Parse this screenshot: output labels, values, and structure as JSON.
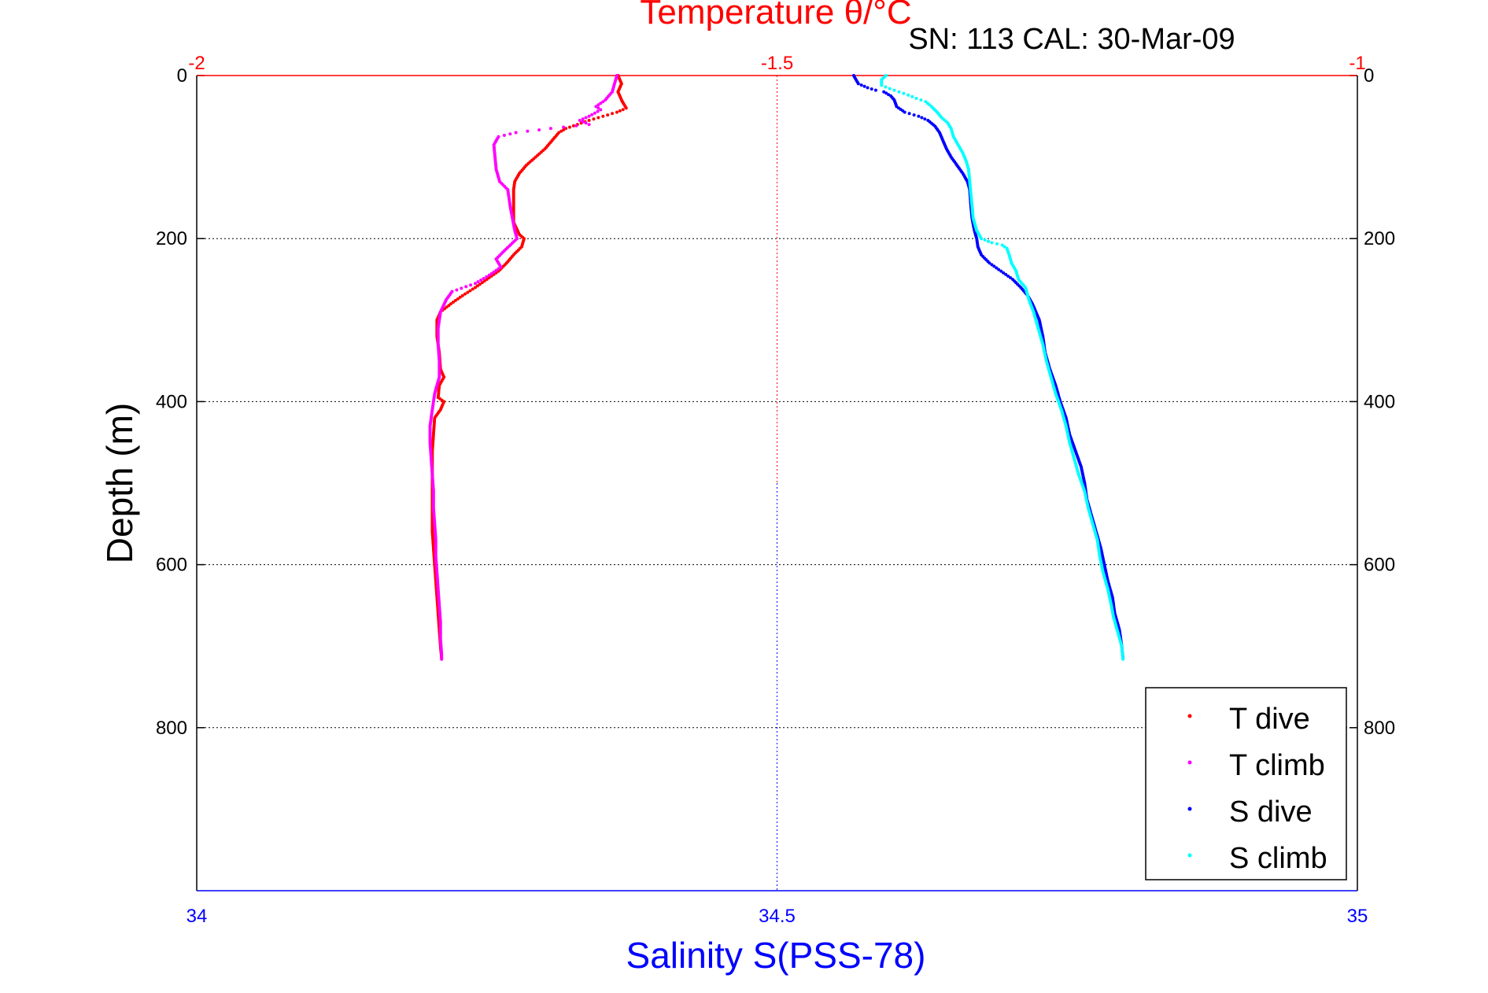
{
  "chart_data": {
    "type": "scatter",
    "title": "Temperature θ/°C",
    "subtitle": "SN: 113  CAL: 30-Mar-09",
    "xlabel": "Salinity S(PSS-78)",
    "ylabel": "Depth (m)",
    "grid": true,
    "legend_position": "bottom-right",
    "colors": {
      "temperature_axis": "#ff0000",
      "salinity_axis": "#0000ff",
      "t_dive": "#ff0000",
      "t_climb": "#ff00ff",
      "s_dive": "#0000ff",
      "s_climb": "#00ffff",
      "grid": "#000000"
    },
    "axes": {
      "temperature": {
        "range": [
          -2,
          -1
        ],
        "ticks": [
          -2,
          -1.5,
          -1
        ],
        "tick_labels": [
          "-2",
          "-1.5",
          "-1"
        ]
      },
      "salinity": {
        "range": [
          34,
          35
        ],
        "ticks": [
          34,
          34.5,
          35
        ],
        "tick_labels": [
          "34",
          "34.5",
          "35"
        ]
      },
      "depth": {
        "range": [
          0,
          1000
        ],
        "ticks": [
          0,
          200,
          400,
          600,
          800
        ],
        "tick_labels": [
          "0",
          "200",
          "400",
          "600",
          "800"
        ]
      }
    },
    "series": [
      {
        "name": "T dive",
        "axis": "temperature",
        "color": "#ff0000",
        "points": [
          [
            -1.637,
            0
          ],
          [
            -1.634,
            10
          ],
          [
            -1.637,
            20
          ],
          [
            -1.634,
            30
          ],
          [
            -1.63,
            40
          ],
          [
            -1.638,
            45
          ],
          [
            -1.65,
            50
          ],
          [
            -1.662,
            55
          ],
          [
            -1.672,
            60
          ],
          [
            -1.682,
            65
          ],
          [
            -1.688,
            70
          ],
          [
            -1.694,
            80
          ],
          [
            -1.7,
            90
          ],
          [
            -1.708,
            100
          ],
          [
            -1.716,
            110
          ],
          [
            -1.722,
            120
          ],
          [
            -1.726,
            130
          ],
          [
            -1.727,
            140
          ],
          [
            -1.727,
            160
          ],
          [
            -1.727,
            180
          ],
          [
            -1.722,
            195
          ],
          [
            -1.718,
            200
          ],
          [
            -1.72,
            210
          ],
          [
            -1.727,
            220
          ],
          [
            -1.733,
            230
          ],
          [
            -1.74,
            240
          ],
          [
            -1.75,
            250
          ],
          [
            -1.76,
            260
          ],
          [
            -1.771,
            270
          ],
          [
            -1.781,
            280
          ],
          [
            -1.79,
            290
          ],
          [
            -1.793,
            300
          ],
          [
            -1.793,
            320
          ],
          [
            -1.791,
            340
          ],
          [
            -1.79,
            360
          ],
          [
            -1.787,
            370
          ],
          [
            -1.791,
            380
          ],
          [
            -1.792,
            395
          ],
          [
            -1.787,
            400
          ],
          [
            -1.79,
            410
          ],
          [
            -1.795,
            420
          ],
          [
            -1.796,
            440
          ],
          [
            -1.797,
            460
          ],
          [
            -1.797,
            480
          ],
          [
            -1.797,
            500
          ],
          [
            -1.797,
            520
          ],
          [
            -1.797,
            540
          ],
          [
            -1.797,
            560
          ],
          [
            -1.796,
            580
          ],
          [
            -1.795,
            600
          ],
          [
            -1.794,
            620
          ],
          [
            -1.793,
            640
          ],
          [
            -1.792,
            660
          ],
          [
            -1.791,
            680
          ],
          [
            -1.79,
            700
          ],
          [
            -1.789,
            715
          ]
        ]
      },
      {
        "name": "T climb",
        "axis": "temperature",
        "color": "#ff00ff",
        "points": [
          [
            -1.638,
            0
          ],
          [
            -1.64,
            10
          ],
          [
            -1.642,
            20
          ],
          [
            -1.648,
            30
          ],
          [
            -1.656,
            38
          ],
          [
            -1.652,
            42
          ],
          [
            -1.662,
            50
          ],
          [
            -1.67,
            55
          ],
          [
            -1.662,
            60
          ],
          [
            -1.695,
            65
          ],
          [
            -1.725,
            70
          ],
          [
            -1.74,
            75
          ],
          [
            -1.744,
            85
          ],
          [
            -1.743,
            100
          ],
          [
            -1.742,
            115
          ],
          [
            -1.739,
            130
          ],
          [
            -1.732,
            140
          ],
          [
            -1.73,
            160
          ],
          [
            -1.728,
            175
          ],
          [
            -1.726,
            190
          ],
          [
            -1.724,
            200
          ],
          [
            -1.735,
            215
          ],
          [
            -1.742,
            225
          ],
          [
            -1.738,
            235
          ],
          [
            -1.748,
            245
          ],
          [
            -1.76,
            255
          ],
          [
            -1.78,
            265
          ],
          [
            -1.785,
            275
          ],
          [
            -1.79,
            290
          ],
          [
            -1.792,
            310
          ],
          [
            -1.792,
            330
          ],
          [
            -1.791,
            350
          ],
          [
            -1.791,
            370
          ],
          [
            -1.795,
            390
          ],
          [
            -1.797,
            410
          ],
          [
            -1.799,
            430
          ],
          [
            -1.799,
            450
          ],
          [
            -1.798,
            470
          ],
          [
            -1.797,
            490
          ],
          [
            -1.796,
            510
          ],
          [
            -1.796,
            530
          ],
          [
            -1.795,
            550
          ],
          [
            -1.794,
            570
          ],
          [
            -1.794,
            590
          ],
          [
            -1.793,
            610
          ],
          [
            -1.792,
            630
          ],
          [
            -1.791,
            650
          ],
          [
            -1.79,
            670
          ],
          [
            -1.79,
            690
          ],
          [
            -1.789,
            710
          ],
          [
            -1.789,
            716
          ]
        ]
      },
      {
        "name": "S dive",
        "axis": "salinity",
        "color": "#0000ff",
        "points": [
          [
            34.566,
            0
          ],
          [
            34.57,
            10
          ],
          [
            34.578,
            15
          ],
          [
            34.585,
            18
          ],
          [
            34.592,
            20
          ],
          [
            34.598,
            25
          ],
          [
            34.601,
            30
          ],
          [
            34.603,
            38
          ],
          [
            34.61,
            45
          ],
          [
            34.622,
            50
          ],
          [
            34.63,
            55
          ],
          [
            34.636,
            62
          ],
          [
            34.64,
            70
          ],
          [
            34.643,
            80
          ],
          [
            34.646,
            90
          ],
          [
            34.65,
            100
          ],
          [
            34.655,
            110
          ],
          [
            34.66,
            120
          ],
          [
            34.664,
            130
          ],
          [
            34.666,
            140
          ],
          [
            34.667,
            160
          ],
          [
            34.668,
            175
          ],
          [
            34.67,
            190
          ],
          [
            34.672,
            200
          ],
          [
            34.673,
            210
          ],
          [
            34.676,
            220
          ],
          [
            34.683,
            230
          ],
          [
            34.693,
            240
          ],
          [
            34.703,
            250
          ],
          [
            34.71,
            260
          ],
          [
            34.716,
            270
          ],
          [
            34.72,
            280
          ],
          [
            34.723,
            290
          ],
          [
            34.726,
            300
          ],
          [
            34.729,
            320
          ],
          [
            34.731,
            340
          ],
          [
            34.735,
            360
          ],
          [
            34.74,
            380
          ],
          [
            34.744,
            400
          ],
          [
            34.749,
            420
          ],
          [
            34.752,
            440
          ],
          [
            34.757,
            460
          ],
          [
            34.762,
            480
          ],
          [
            34.765,
            500
          ],
          [
            34.767,
            520
          ],
          [
            34.771,
            540
          ],
          [
            34.775,
            560
          ],
          [
            34.779,
            580
          ],
          [
            34.782,
            600
          ],
          [
            34.785,
            620
          ],
          [
            34.789,
            640
          ],
          [
            34.791,
            660
          ],
          [
            34.795,
            680
          ],
          [
            34.797,
            700
          ],
          [
            34.798,
            715
          ]
        ]
      },
      {
        "name": "S climb",
        "axis": "salinity",
        "color": "#00ffff",
        "points": [
          [
            34.594,
            0
          ],
          [
            34.59,
            5
          ],
          [
            34.59,
            12
          ],
          [
            34.597,
            16
          ],
          [
            34.605,
            20
          ],
          [
            34.613,
            24
          ],
          [
            34.62,
            28
          ],
          [
            34.628,
            32
          ],
          [
            34.633,
            38
          ],
          [
            34.638,
            45
          ],
          [
            34.642,
            52
          ],
          [
            34.647,
            58
          ],
          [
            34.65,
            65
          ],
          [
            34.652,
            75
          ],
          [
            34.656,
            85
          ],
          [
            34.66,
            95
          ],
          [
            34.663,
            105
          ],
          [
            34.665,
            115
          ],
          [
            34.666,
            130
          ],
          [
            34.667,
            145
          ],
          [
            34.668,
            160
          ],
          [
            34.669,
            175
          ],
          [
            34.672,
            190
          ],
          [
            34.676,
            200
          ],
          [
            34.685,
            205
          ],
          [
            34.694,
            208
          ],
          [
            34.698,
            212
          ],
          [
            34.7,
            220
          ],
          [
            34.702,
            230
          ],
          [
            34.706,
            240
          ],
          [
            34.708,
            250
          ],
          [
            34.714,
            260
          ],
          [
            34.717,
            275
          ],
          [
            34.721,
            290
          ],
          [
            34.725,
            310
          ],
          [
            34.729,
            330
          ],
          [
            34.732,
            350
          ],
          [
            34.736,
            370
          ],
          [
            34.74,
            390
          ],
          [
            34.745,
            410
          ],
          [
            34.749,
            430
          ],
          [
            34.752,
            450
          ],
          [
            34.756,
            470
          ],
          [
            34.76,
            490
          ],
          [
            34.765,
            510
          ],
          [
            34.768,
            530
          ],
          [
            34.772,
            550
          ],
          [
            34.776,
            570
          ],
          [
            34.778,
            590
          ],
          [
            34.781,
            610
          ],
          [
            34.785,
            630
          ],
          [
            34.788,
            650
          ],
          [
            34.79,
            665
          ],
          [
            34.793,
            680
          ],
          [
            34.797,
            700
          ],
          [
            34.798,
            716
          ]
        ]
      }
    ]
  }
}
